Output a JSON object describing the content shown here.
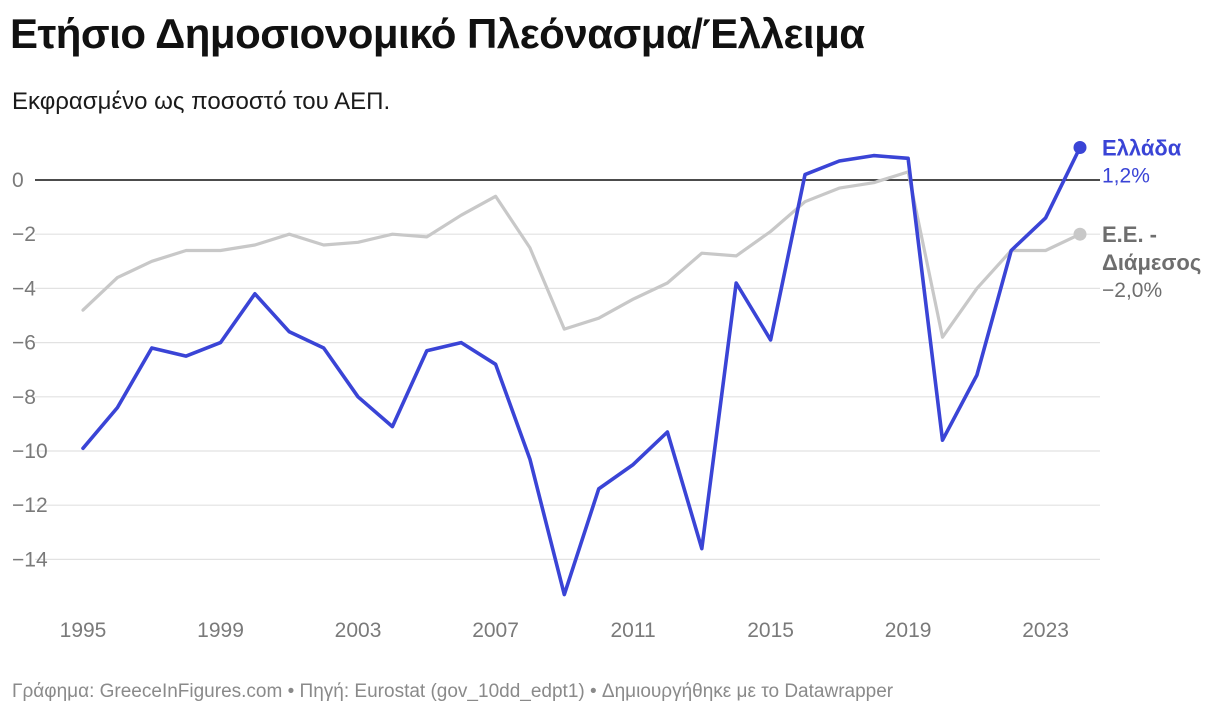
{
  "header": {
    "title": "Ετήσιο Δημοσιονομικό Πλεόνασμα/Έλλειμα",
    "subtitle": "Εκφρασμένο ως ποσοστό του ΑΕΠ."
  },
  "footer": {
    "text": "Γράφημα: GreeceInFigures.com • Πηγή: Eurostat (gov_10dd_edpt1) • Δημιουργήθηκε με το Datawrapper"
  },
  "colors": {
    "greece": "#3a44d6",
    "eu": "#c8c8c8",
    "eu_label": "#6e6e6e",
    "zero_line": "#111111",
    "grid": "#e2e2e2"
  },
  "chart_data": {
    "type": "line",
    "title": "Ετήσιο Δημοσιονομικό Πλεόνασμα/Έλλειμα",
    "subtitle": "Εκφρασμένο ως ποσοστό του ΑΕΠ.",
    "x": [
      1995,
      1996,
      1997,
      1998,
      1999,
      2000,
      2001,
      2002,
      2003,
      2004,
      2005,
      2006,
      2007,
      2008,
      2009,
      2010,
      2011,
      2012,
      2013,
      2014,
      2015,
      2016,
      2017,
      2018,
      2019,
      2020,
      2021,
      2022,
      2023,
      2024
    ],
    "xticks": [
      "1995",
      "1999",
      "2003",
      "2007",
      "2011",
      "2015",
      "2019",
      "2023"
    ],
    "xtick_values": [
      1995,
      1999,
      2003,
      2007,
      2011,
      2015,
      2019,
      2023
    ],
    "yticks": [
      "0",
      "−2",
      "−4",
      "−6",
      "−8",
      "−10",
      "−12",
      "−14"
    ],
    "ytick_values": [
      0,
      -2,
      -4,
      -6,
      -8,
      -10,
      -12,
      -14
    ],
    "ylim": [
      -15.5,
      1.5
    ],
    "xlim": [
      1995,
      2024
    ],
    "grid": true,
    "zero_line": true,
    "series": [
      {
        "key": "eu",
        "name_lines": [
          "Ε.Ε. -",
          "Διάμεσος"
        ],
        "end_label": "−2,0%",
        "values": [
          -4.8,
          -3.6,
          -3.0,
          -2.6,
          -2.6,
          -2.4,
          -2.0,
          -2.4,
          -2.3,
          -2.0,
          -2.1,
          -1.3,
          -0.6,
          -2.5,
          -5.5,
          -5.1,
          -4.4,
          -3.8,
          -2.7,
          -2.8,
          -1.9,
          -0.8,
          -0.3,
          -0.1,
          0.3,
          -5.8,
          -4.0,
          -2.6,
          -2.6,
          -2.0
        ]
      },
      {
        "key": "greece",
        "name_lines": [
          "Ελλάδα"
        ],
        "end_label": "1,2%",
        "values": [
          -9.9,
          -8.4,
          -6.2,
          -6.5,
          -6.0,
          -4.2,
          -5.6,
          -6.2,
          -8.0,
          -9.1,
          -6.3,
          -6.0,
          -6.8,
          -10.3,
          -15.3,
          -11.4,
          -10.5,
          -9.3,
          -13.6,
          -3.8,
          -5.9,
          0.2,
          0.7,
          0.9,
          0.8,
          -9.6,
          -7.2,
          -2.6,
          -1.4,
          1.2
        ]
      }
    ]
  }
}
